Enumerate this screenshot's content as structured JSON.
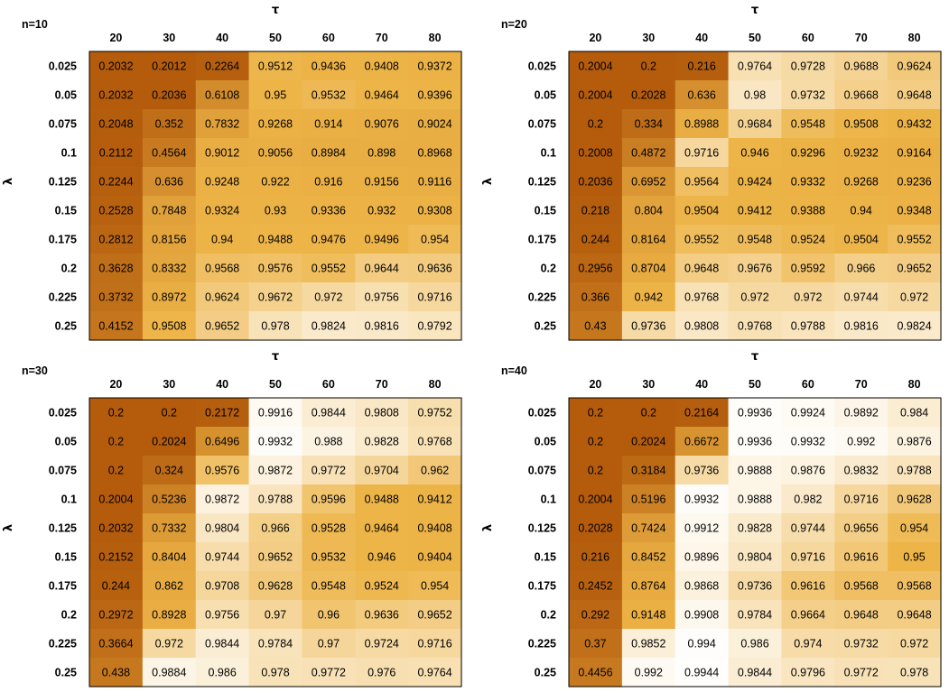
{
  "chart_data": [
    {
      "type": "heatmap",
      "title": "n=10",
      "xlabel": "τ",
      "ylabel": "λ",
      "x": [
        "20",
        "30",
        "40",
        "50",
        "60",
        "70",
        "80"
      ],
      "y": [
        "0.025",
        "0.05",
        "0.075",
        "0.1",
        "0.125",
        "0.15",
        "0.175",
        "0.2",
        "0.225",
        "0.25"
      ],
      "values": [
        [
          "0.2032",
          "0.2012",
          "0.2264",
          "0.9512",
          "0.9436",
          "0.9408",
          "0.9372"
        ],
        [
          "0.2032",
          "0.2036",
          "0.6108",
          "0.95",
          "0.9532",
          "0.9464",
          "0.9396"
        ],
        [
          "0.2048",
          "0.352",
          "0.7832",
          "0.9268",
          "0.914",
          "0.9076",
          "0.9024"
        ],
        [
          "0.2112",
          "0.4564",
          "0.9012",
          "0.9056",
          "0.8984",
          "0.898",
          "0.8968"
        ],
        [
          "0.2244",
          "0.636",
          "0.9248",
          "0.922",
          "0.916",
          "0.9156",
          "0.9116"
        ],
        [
          "0.2528",
          "0.7848",
          "0.9324",
          "0.93",
          "0.9336",
          "0.932",
          "0.9308"
        ],
        [
          "0.2812",
          "0.8156",
          "0.94",
          "0.9488",
          "0.9476",
          "0.9496",
          "0.954"
        ],
        [
          "0.3628",
          "0.8332",
          "0.9568",
          "0.9576",
          "0.9552",
          "0.9644",
          "0.9636"
        ],
        [
          "0.3732",
          "0.8972",
          "0.9624",
          "0.9672",
          "0.972",
          "0.9756",
          "0.9716"
        ],
        [
          "0.4152",
          "0.9508",
          "0.9652",
          "0.978",
          "0.9824",
          "0.9816",
          "0.9792"
        ]
      ]
    },
    {
      "type": "heatmap",
      "title": "n=20",
      "xlabel": "τ",
      "ylabel": "λ",
      "x": [
        "20",
        "30",
        "40",
        "50",
        "60",
        "70",
        "80"
      ],
      "y": [
        "0.025",
        "0.05",
        "0.075",
        "0.1",
        "0.125",
        "0.15",
        "0.175",
        "0.2",
        "0.225",
        "0.25"
      ],
      "values": [
        [
          "0.2004",
          "0.2",
          "0.216",
          "0.9764",
          "0.9728",
          "0.9688",
          "0.9624"
        ],
        [
          "0.2004",
          "0.2028",
          "0.636",
          "0.98",
          "0.9732",
          "0.9668",
          "0.9648"
        ],
        [
          "0.2",
          "0.334",
          "0.8988",
          "0.9684",
          "0.9548",
          "0.9508",
          "0.9432"
        ],
        [
          "0.2008",
          "0.4872",
          "0.9716",
          "0.946",
          "0.9296",
          "0.9232",
          "0.9164"
        ],
        [
          "0.2036",
          "0.6952",
          "0.9564",
          "0.9424",
          "0.9332",
          "0.9268",
          "0.9236"
        ],
        [
          "0.218",
          "0.804",
          "0.9504",
          "0.9412",
          "0.9388",
          "0.94",
          "0.9348"
        ],
        [
          "0.244",
          "0.8164",
          "0.9552",
          "0.9548",
          "0.9524",
          "0.9504",
          "0.9552"
        ],
        [
          "0.2956",
          "0.8704",
          "0.9648",
          "0.9676",
          "0.9592",
          "0.966",
          "0.9652"
        ],
        [
          "0.366",
          "0.942",
          "0.9768",
          "0.972",
          "0.972",
          "0.9744",
          "0.972"
        ],
        [
          "0.43",
          "0.9736",
          "0.9808",
          "0.9768",
          "0.9788",
          "0.9816",
          "0.9824"
        ]
      ]
    },
    {
      "type": "heatmap",
      "title": "n=30",
      "xlabel": "τ",
      "ylabel": "λ",
      "x": [
        "20",
        "30",
        "40",
        "50",
        "60",
        "70",
        "80"
      ],
      "y": [
        "0.025",
        "0.05",
        "0.075",
        "0.1",
        "0.125",
        "0.15",
        "0.175",
        "0.2",
        "0.225",
        "0.25"
      ],
      "values": [
        [
          "0.2",
          "0.2",
          "0.2172",
          "0.9916",
          "0.9844",
          "0.9808",
          "0.9752"
        ],
        [
          "0.2",
          "0.2024",
          "0.6496",
          "0.9932",
          "0.988",
          "0.9828",
          "0.9768"
        ],
        [
          "0.2",
          "0.324",
          "0.9576",
          "0.9872",
          "0.9772",
          "0.9704",
          "0.962"
        ],
        [
          "0.2004",
          "0.5236",
          "0.9872",
          "0.9788",
          "0.9596",
          "0.9488",
          "0.9412"
        ],
        [
          "0.2032",
          "0.7332",
          "0.9804",
          "0.966",
          "0.9528",
          "0.9464",
          "0.9408"
        ],
        [
          "0.2152",
          "0.8404",
          "0.9744",
          "0.9652",
          "0.9532",
          "0.946",
          "0.9404"
        ],
        [
          "0.244",
          "0.862",
          "0.9708",
          "0.9628",
          "0.9548",
          "0.9524",
          "0.954"
        ],
        [
          "0.2972",
          "0.8928",
          "0.9756",
          "0.97",
          "0.96",
          "0.9636",
          "0.9652"
        ],
        [
          "0.3664",
          "0.972",
          "0.9844",
          "0.9784",
          "0.97",
          "0.9724",
          "0.9716"
        ],
        [
          "0.438",
          "0.9884",
          "0.986",
          "0.978",
          "0.9772",
          "0.976",
          "0.9764"
        ]
      ]
    },
    {
      "type": "heatmap",
      "title": "n=40",
      "xlabel": "τ",
      "ylabel": "λ",
      "x": [
        "20",
        "30",
        "40",
        "50",
        "60",
        "70",
        "80"
      ],
      "y": [
        "0.025",
        "0.05",
        "0.075",
        "0.1",
        "0.125",
        "0.15",
        "0.175",
        "0.2",
        "0.225",
        "0.25"
      ],
      "values": [
        [
          "0.2",
          "0.2",
          "0.2164",
          "0.9936",
          "0.9924",
          "0.9892",
          "0.984"
        ],
        [
          "0.2",
          "0.2024",
          "0.6672",
          "0.9936",
          "0.9932",
          "0.992",
          "0.9876"
        ],
        [
          "0.2",
          "0.3184",
          "0.9736",
          "0.9888",
          "0.9876",
          "0.9832",
          "0.9788"
        ],
        [
          "0.2004",
          "0.5196",
          "0.9932",
          "0.9888",
          "0.982",
          "0.9716",
          "0.9628"
        ],
        [
          "0.2028",
          "0.7424",
          "0.9912",
          "0.9828",
          "0.9744",
          "0.9656",
          "0.954"
        ],
        [
          "0.216",
          "0.8452",
          "0.9896",
          "0.9804",
          "0.9716",
          "0.9616",
          "0.95"
        ],
        [
          "0.2452",
          "0.8764",
          "0.9868",
          "0.9736",
          "0.9616",
          "0.9568",
          "0.9568"
        ],
        [
          "0.292",
          "0.9148",
          "0.9908",
          "0.9784",
          "0.9664",
          "0.9648",
          "0.9648"
        ],
        [
          "0.37",
          "0.9852",
          "0.994",
          "0.986",
          "0.974",
          "0.9732",
          "0.972"
        ],
        [
          "0.4456",
          "0.992",
          "0.9944",
          "0.9844",
          "0.9796",
          "0.9772",
          "0.978"
        ]
      ]
    }
  ],
  "colors": {
    "low": "#b45c0c",
    "mid": "#edb447",
    "high": "#ffffff",
    "border": "#000000"
  }
}
